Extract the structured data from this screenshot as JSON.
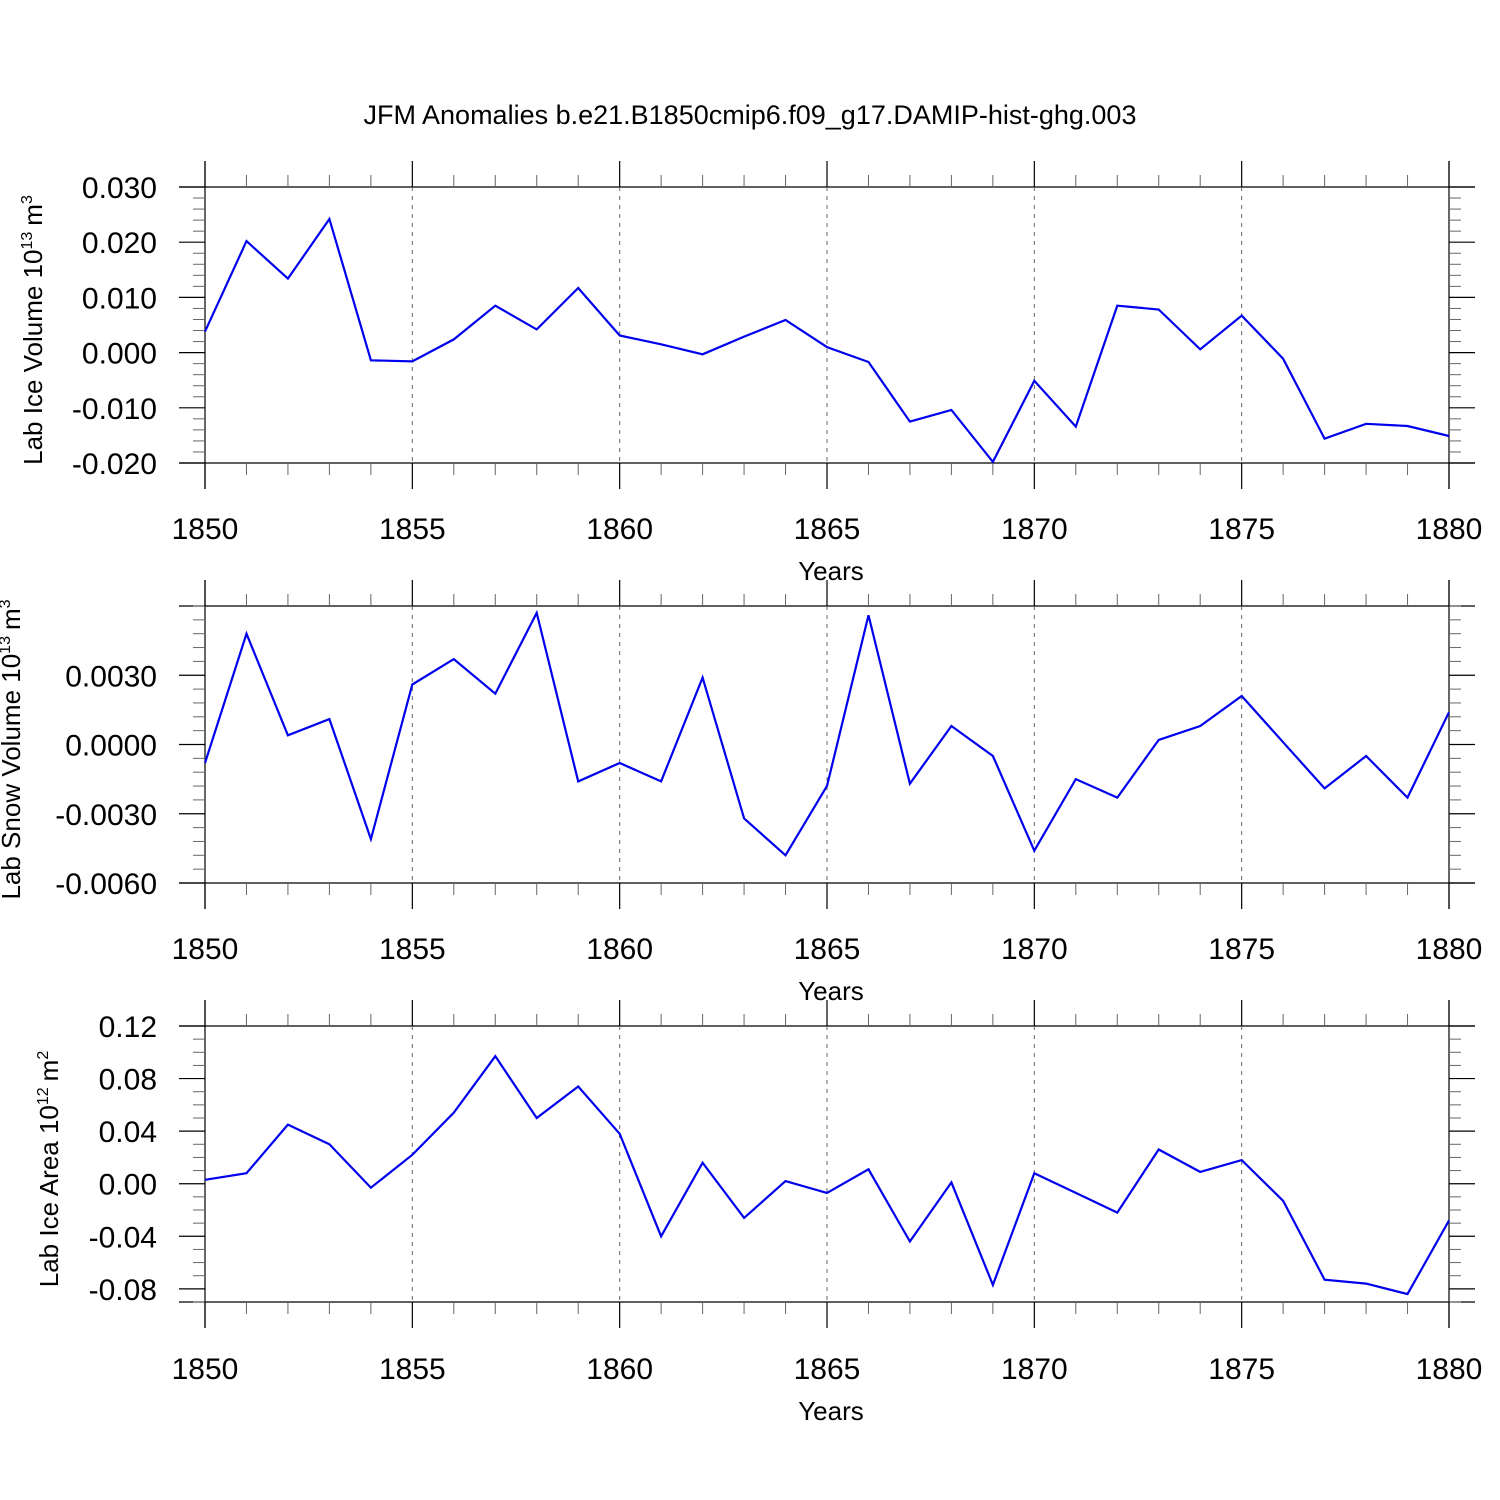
{
  "title": "JFM Anomalies b.e21.B1850cmip6.f09_g17.DAMIP-hist-ghg.003",
  "colors": {
    "line": "#0000ee",
    "axis": "#000000",
    "grid": "#666666"
  },
  "chart_data": [
    {
      "type": "line",
      "ylabel_main": "Lab Ice Volume 10",
      "ylabel_exp": "13",
      "ylabel_unit": "m",
      "ylabel_unit_exp": "3",
      "xlabel": "Years",
      "xlim": [
        1850,
        1880
      ],
      "ylim": [
        -0.02,
        0.03
      ],
      "yticks": [
        -0.02,
        -0.01,
        0.0,
        0.01,
        0.02,
        0.03
      ],
      "ytick_labels": [
        "-0.020",
        "-0.010",
        "0.000",
        "0.010",
        "0.020",
        "0.030"
      ],
      "yminor_step": 0.002,
      "xticks": [
        1850,
        1855,
        1860,
        1865,
        1870,
        1875,
        1880
      ],
      "xtick_labels": [
        "1850",
        "1855",
        "1860",
        "1865",
        "1870",
        "1875",
        "1880"
      ],
      "x": [
        1850,
        1851,
        1852,
        1853,
        1854,
        1855,
        1856,
        1857,
        1858,
        1859,
        1860,
        1861,
        1862,
        1863,
        1864,
        1865,
        1866,
        1867,
        1868,
        1869,
        1870,
        1871,
        1872,
        1873,
        1874,
        1875,
        1876,
        1877,
        1878,
        1879,
        1880
      ],
      "values": [
        0.0038,
        0.0202,
        0.0134,
        0.0242,
        -0.0014,
        -0.0016,
        0.0024,
        0.0085,
        0.0042,
        0.0117,
        0.0031,
        0.0015,
        -0.0003,
        0.0029,
        0.0059,
        0.001,
        -0.0017,
        -0.0125,
        -0.0104,
        -0.0198,
        -0.0051,
        -0.0134,
        0.0085,
        0.0078,
        0.0006,
        0.0067,
        -0.0011,
        -0.0156,
        -0.0129,
        -0.0133,
        -0.0151
      ]
    },
    {
      "type": "line",
      "ylabel_main": "Lab Snow Volume 10",
      "ylabel_exp": "13",
      "ylabel_unit": "m",
      "ylabel_unit_exp": "3",
      "xlabel": "Years",
      "xlim": [
        1850,
        1880
      ],
      "ylim": [
        -0.006,
        0.006
      ],
      "yticks": [
        -0.006,
        -0.003,
        0.0,
        0.003
      ],
      "ytick_labels": [
        "-0.0060",
        "-0.0030",
        "0.0000",
        "0.0030"
      ],
      "yminor_step": 0.0006,
      "xticks": [
        1850,
        1855,
        1860,
        1865,
        1870,
        1875,
        1880
      ],
      "xtick_labels": [
        "1850",
        "1855",
        "1860",
        "1865",
        "1870",
        "1875",
        "1880"
      ],
      "x": [
        1850,
        1851,
        1852,
        1853,
        1854,
        1855,
        1856,
        1857,
        1858,
        1859,
        1860,
        1861,
        1862,
        1863,
        1864,
        1865,
        1866,
        1867,
        1868,
        1869,
        1870,
        1871,
        1872,
        1873,
        1874,
        1875,
        1876,
        1877,
        1878,
        1879,
        1880
      ],
      "values": [
        -0.0008,
        0.0048,
        0.0004,
        0.0011,
        -0.0041,
        0.0026,
        0.0037,
        0.0022,
        0.0057,
        -0.0016,
        -0.0008,
        -0.0016,
        0.0029,
        -0.0032,
        -0.0048,
        -0.0018,
        0.0056,
        -0.0017,
        0.0008,
        -0.0005,
        -0.0046,
        -0.0015,
        -0.0023,
        0.0002,
        0.0008,
        0.0021,
        0.0001,
        -0.0019,
        -0.0005,
        -0.0023,
        0.0014
      ]
    },
    {
      "type": "line",
      "ylabel_main": "Lab Ice Area 10",
      "ylabel_exp": "12",
      "ylabel_unit": "m",
      "ylabel_unit_exp": "2",
      "xlabel": "Years",
      "xlim": [
        1850,
        1880
      ],
      "ylim": [
        -0.09,
        0.12
      ],
      "yticks": [
        -0.08,
        -0.04,
        0.0,
        0.04,
        0.08,
        0.12
      ],
      "ytick_labels": [
        "-0.08",
        "-0.04",
        "0.00",
        "0.04",
        "0.08",
        "0.12"
      ],
      "yminor_step": 0.01,
      "xticks": [
        1850,
        1855,
        1860,
        1865,
        1870,
        1875,
        1880
      ],
      "xtick_labels": [
        "1850",
        "1855",
        "1860",
        "1865",
        "1870",
        "1875",
        "1880"
      ],
      "x": [
        1850,
        1851,
        1852,
        1853,
        1854,
        1855,
        1856,
        1857,
        1858,
        1859,
        1860,
        1861,
        1862,
        1863,
        1864,
        1865,
        1866,
        1867,
        1868,
        1869,
        1870,
        1871,
        1872,
        1873,
        1874,
        1875,
        1876,
        1877,
        1878,
        1879,
        1880
      ],
      "values": [
        0.003,
        0.008,
        0.045,
        0.03,
        -0.003,
        0.022,
        0.054,
        0.097,
        0.05,
        0.074,
        0.038,
        -0.04,
        0.016,
        -0.026,
        0.002,
        -0.007,
        0.011,
        -0.044,
        0.001,
        -0.077,
        0.008,
        -0.007,
        -0.022,
        0.026,
        0.009,
        0.018,
        -0.013,
        -0.073,
        -0.076,
        -0.084,
        -0.028
      ]
    }
  ]
}
